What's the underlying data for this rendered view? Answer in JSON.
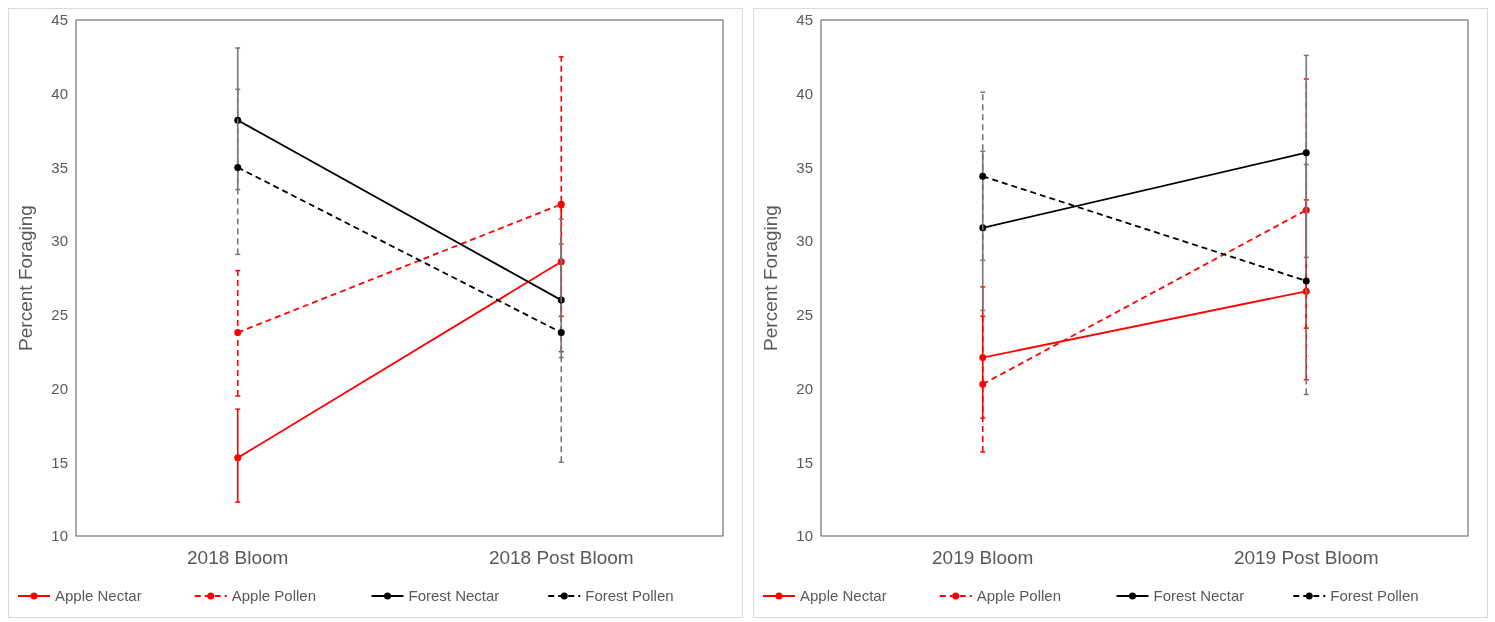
{
  "chart_data": [
    {
      "type": "line",
      "ylabel": "Percent Foraging",
      "categories": [
        "2018 Bloom",
        "2018 Post Bloom"
      ],
      "ylim": [
        10,
        45
      ],
      "yticks": [
        10,
        15,
        20,
        25,
        30,
        35,
        40,
        45
      ],
      "grid": false,
      "legend": "bottom",
      "marker": "circle",
      "series": [
        {
          "name": "Apple Nectar",
          "color": "#ff0000",
          "line_style": "solid",
          "values": [
            15.3,
            28.6
          ],
          "errors": [
            [
              12.3,
              18.6
            ],
            [
              24.9,
              32.3
            ]
          ]
        },
        {
          "name": "Apple Pollen",
          "color": "#ff0000",
          "line_style": "dashed",
          "values": [
            23.8,
            32.5
          ],
          "errors": [
            [
              19.5,
              28.0
            ],
            [
              22.5,
              42.5
            ]
          ]
        },
        {
          "name": "Forest Nectar",
          "color": "#000000",
          "line_style": "solid",
          "values": [
            38.2,
            26.0
          ],
          "errors": [
            [
              33.5,
              43.1
            ],
            [
              22.1,
              29.8
            ]
          ]
        },
        {
          "name": "Forest Pollen",
          "color": "#000000",
          "line_style": "dashed",
          "values": [
            35.0,
            23.8
          ],
          "errors": [
            [
              29.1,
              40.3
            ],
            [
              15.0,
              31.5
            ]
          ]
        }
      ]
    },
    {
      "type": "line",
      "ylabel": "Percent Foraging",
      "categories": [
        "2019 Bloom",
        "2019 Post Bloom"
      ],
      "ylim": [
        10,
        45
      ],
      "yticks": [
        10,
        15,
        20,
        25,
        30,
        35,
        40,
        45
      ],
      "grid": false,
      "legend": "bottom",
      "marker": "circle",
      "series": [
        {
          "name": "Apple Nectar",
          "color": "#ff0000",
          "line_style": "solid",
          "values": [
            22.1,
            26.6
          ],
          "errors": [
            [
              18.0,
              26.9
            ],
            [
              20.6,
              32.8
            ]
          ]
        },
        {
          "name": "Apple Pollen",
          "color": "#ff0000",
          "line_style": "dashed",
          "values": [
            20.3,
            32.1
          ],
          "errors": [
            [
              15.7,
              24.9
            ],
            [
              24.1,
              41.0
            ]
          ]
        },
        {
          "name": "Forest Nectar",
          "color": "#000000",
          "line_style": "solid",
          "values": [
            30.9,
            36.0
          ],
          "errors": [
            [
              25.3,
              36.1
            ],
            [
              28.9,
              42.6
            ]
          ]
        },
        {
          "name": "Forest Pollen",
          "color": "#000000",
          "line_style": "dashed",
          "values": [
            34.4,
            27.3
          ],
          "errors": [
            [
              28.7,
              40.1
            ],
            [
              19.6,
              35.2
            ]
          ]
        }
      ]
    }
  ]
}
